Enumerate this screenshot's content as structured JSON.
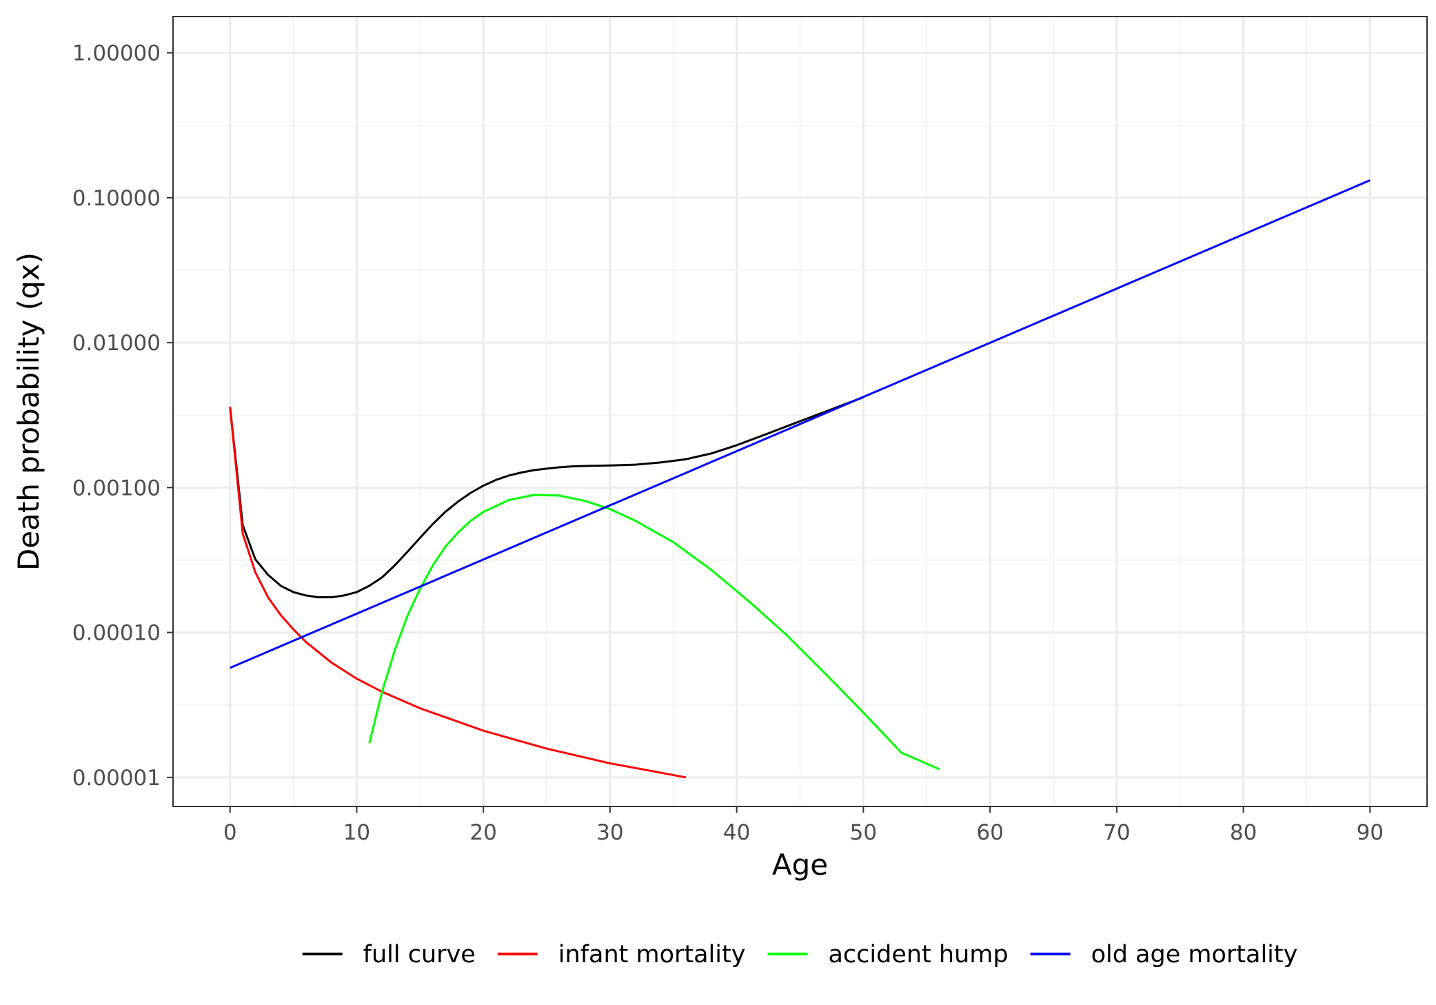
{
  "chart_data": {
    "type": "line",
    "title": "",
    "xlabel": "Age",
    "ylabel": "Death probability (qx)",
    "x_scale": "linear",
    "y_scale": "log10",
    "xlim": [
      -4.5,
      94.5
    ],
    "ylim": [
      6.3e-06,
      1.78
    ],
    "x_ticks": [
      0,
      10,
      20,
      30,
      40,
      50,
      60,
      70,
      80,
      90
    ],
    "x_tick_labels": [
      "0",
      "10",
      "20",
      "30",
      "40",
      "50",
      "60",
      "70",
      "80",
      "90"
    ],
    "y_ticks": [
      1e-05,
      0.0001,
      0.001,
      0.01,
      0.1,
      1
    ],
    "y_tick_labels": [
      "0.00001",
      "0.00010",
      "0.00100",
      "0.01000",
      "0.10000",
      "1.00000"
    ],
    "grid": true,
    "legend_position": "bottom",
    "series": [
      {
        "name": "full curve",
        "color": "#000000",
        "x": [
          0,
          1,
          2,
          3,
          4,
          5,
          6,
          7,
          8,
          9,
          10,
          11,
          12,
          13,
          14,
          15,
          16,
          17,
          18,
          19,
          20,
          21,
          22,
          23,
          24,
          25,
          26,
          27,
          28,
          30,
          32,
          34,
          36,
          38,
          40,
          42,
          45,
          50
        ],
        "y": [
          0.0036,
          0.00055,
          0.00032,
          0.00025,
          0.00021,
          0.00019,
          0.00018,
          0.000175,
          0.000175,
          0.00018,
          0.00019,
          0.00021,
          0.00024,
          0.00029,
          0.00036,
          0.00045,
          0.00056,
          0.00068,
          0.0008,
          0.00092,
          0.00103,
          0.00113,
          0.00121,
          0.00127,
          0.00132,
          0.00135,
          0.00138,
          0.0014,
          0.00141,
          0.00142,
          0.00144,
          0.00149,
          0.00157,
          0.00172,
          0.00196,
          0.00228,
          0.00287,
          0.0042
        ]
      },
      {
        "name": "infant mortality",
        "color": "#ff0000",
        "x": [
          0,
          1,
          2,
          3,
          4,
          5,
          6,
          8,
          10,
          12,
          15,
          20,
          25,
          30,
          36
        ],
        "y": [
          0.0036,
          0.00048,
          0.00026,
          0.000175,
          0.000132,
          0.000105,
          8.6e-05,
          6.2e-05,
          4.8e-05,
          3.9e-05,
          3e-05,
          2.1e-05,
          1.58e-05,
          1.25e-05,
          1e-05
        ]
      },
      {
        "name": "accident hump",
        "color": "#00ff00",
        "x": [
          11,
          12,
          13,
          14,
          15,
          16,
          17,
          18,
          19,
          20,
          22,
          24,
          26,
          28,
          30,
          32,
          35,
          38,
          41,
          44,
          47,
          50,
          53,
          56
        ],
        "y": [
          1.72e-05,
          3.9e-05,
          7.5e-05,
          0.00013,
          0.0002,
          0.00029,
          0.00039,
          0.00049,
          0.00059,
          0.00068,
          0.00082,
          0.00089,
          0.00088,
          0.00081,
          0.00071,
          0.00059,
          0.00042,
          0.00027,
          0.000163,
          9.5e-05,
          5.2e-05,
          2.8e-05,
          1.48e-05,
          1.14e-05
        ]
      },
      {
        "name": "old age mortality",
        "color": "#0000ff",
        "x": [
          0,
          90
        ],
        "y": [
          5.7e-05,
          0.132
        ]
      }
    ]
  }
}
